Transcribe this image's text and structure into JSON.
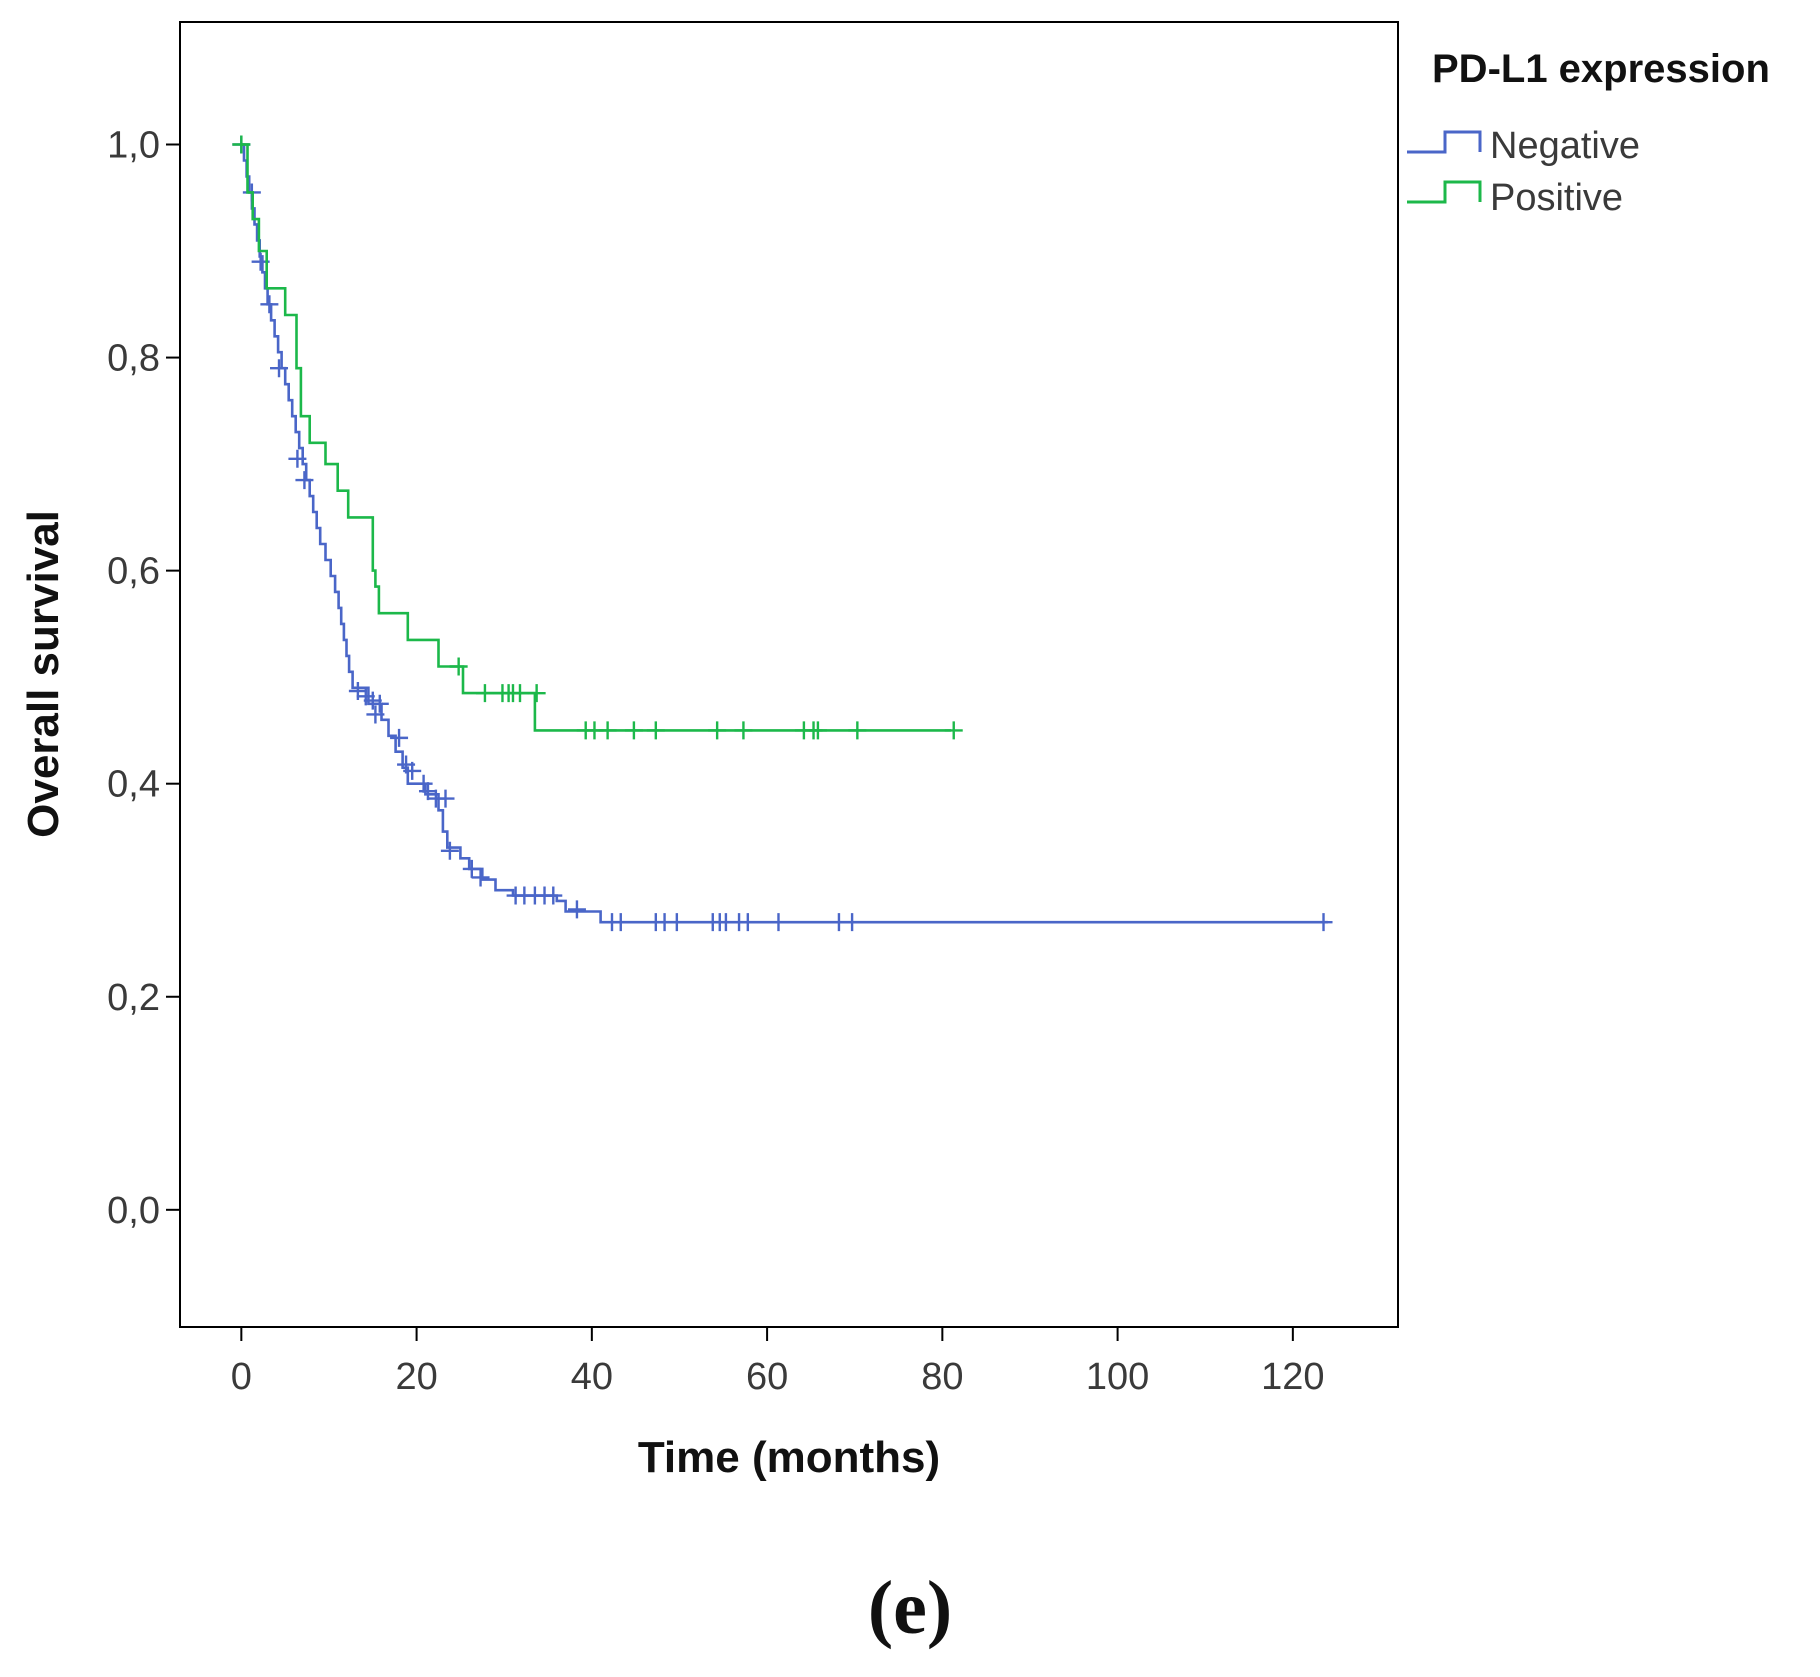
{
  "chart_data": {
    "type": "line",
    "subtype": "kaplan-meier step",
    "xlabel": "Time (months)",
    "ylabel": "Overall survival",
    "xlim": [
      -7,
      132
    ],
    "ylim": [
      -0.11,
      1.115
    ],
    "xticks": [
      0,
      20,
      40,
      60,
      80,
      100,
      120
    ],
    "xtick_labels": [
      "0",
      "20",
      "40",
      "60",
      "80",
      "100",
      "120"
    ],
    "yticks": [
      0.0,
      0.2,
      0.4,
      0.6,
      0.8,
      1.0
    ],
    "ytick_labels": [
      "0,0",
      "0,2",
      "0,4",
      "0,6",
      "0,8",
      "1,0"
    ],
    "grid": false,
    "legend": {
      "title": "PD-L1 expression",
      "placement": "right-outside-top"
    },
    "series": [
      {
        "name": "Negative",
        "color": "#4a66c8",
        "steps": [
          [
            0,
            1.0
          ],
          [
            0.3,
            0.985
          ],
          [
            0.6,
            0.97
          ],
          [
            0.9,
            0.955
          ],
          [
            1.2,
            0.94
          ],
          [
            1.5,
            0.925
          ],
          [
            1.8,
            0.91
          ],
          [
            2.1,
            0.895
          ],
          [
            2.4,
            0.88
          ],
          [
            2.7,
            0.865
          ],
          [
            3.0,
            0.85
          ],
          [
            3.4,
            0.835
          ],
          [
            3.8,
            0.82
          ],
          [
            4.2,
            0.805
          ],
          [
            4.6,
            0.79
          ],
          [
            5.0,
            0.775
          ],
          [
            5.4,
            0.76
          ],
          [
            5.8,
            0.745
          ],
          [
            6.2,
            0.73
          ],
          [
            6.6,
            0.715
          ],
          [
            7.0,
            0.7
          ],
          [
            7.4,
            0.685
          ],
          [
            7.8,
            0.67
          ],
          [
            8.2,
            0.655
          ],
          [
            8.6,
            0.64
          ],
          [
            9.0,
            0.625
          ],
          [
            9.6,
            0.61
          ],
          [
            10.2,
            0.595
          ],
          [
            10.7,
            0.58
          ],
          [
            11.1,
            0.565
          ],
          [
            11.4,
            0.55
          ],
          [
            11.7,
            0.535
          ],
          [
            12.0,
            0.52
          ],
          [
            12.3,
            0.505
          ],
          [
            12.7,
            0.49
          ],
          [
            14.5,
            0.475
          ],
          [
            16.0,
            0.46
          ],
          [
            16.8,
            0.445
          ],
          [
            17.6,
            0.43
          ],
          [
            18.4,
            0.415
          ],
          [
            19.0,
            0.4
          ],
          [
            21.0,
            0.39
          ],
          [
            22.5,
            0.375
          ],
          [
            23.0,
            0.355
          ],
          [
            23.5,
            0.34
          ],
          [
            25.0,
            0.33
          ],
          [
            26.0,
            0.32
          ],
          [
            27.5,
            0.31
          ],
          [
            29.0,
            0.3
          ],
          [
            31.0,
            0.295
          ],
          [
            36.0,
            0.29
          ],
          [
            37.0,
            0.28
          ],
          [
            41.0,
            0.27
          ]
        ],
        "end_time": 124,
        "censored": [
          [
            0,
            1.0
          ],
          [
            1.2,
            0.955
          ],
          [
            2.2,
            0.89
          ],
          [
            3.2,
            0.85
          ],
          [
            4.3,
            0.79
          ],
          [
            6.4,
            0.705
          ],
          [
            7.2,
            0.685
          ],
          [
            13.3,
            0.487
          ],
          [
            14.2,
            0.482
          ],
          [
            15.0,
            0.478
          ],
          [
            15.8,
            0.475
          ],
          [
            15.3,
            0.465
          ],
          [
            18.0,
            0.443
          ],
          [
            18.8,
            0.418
          ],
          [
            19.5,
            0.412
          ],
          [
            20.8,
            0.4
          ],
          [
            21.3,
            0.393
          ],
          [
            22.2,
            0.386
          ],
          [
            23.3,
            0.386
          ],
          [
            23.8,
            0.337
          ],
          [
            26.3,
            0.32
          ],
          [
            27.3,
            0.312
          ],
          [
            31.3,
            0.295
          ],
          [
            32.3,
            0.295
          ],
          [
            33.5,
            0.295
          ],
          [
            34.6,
            0.295
          ],
          [
            35.6,
            0.295
          ],
          [
            38.3,
            0.282
          ],
          [
            42.3,
            0.27
          ],
          [
            43.3,
            0.27
          ],
          [
            47.3,
            0.27
          ],
          [
            48.3,
            0.27
          ],
          [
            49.7,
            0.27
          ],
          [
            53.8,
            0.27
          ],
          [
            54.6,
            0.27
          ],
          [
            55.3,
            0.27
          ],
          [
            56.8,
            0.27
          ],
          [
            57.8,
            0.27
          ],
          [
            61.3,
            0.27
          ],
          [
            68.2,
            0.27
          ],
          [
            69.7,
            0.27
          ],
          [
            123.5,
            0.27
          ]
        ]
      },
      {
        "name": "Positive",
        "color": "#1cb84a",
        "steps": [
          [
            0,
            1.0
          ],
          [
            0.7,
            0.955
          ],
          [
            1.3,
            0.93
          ],
          [
            2.0,
            0.9
          ],
          [
            2.9,
            0.865
          ],
          [
            5.0,
            0.84
          ],
          [
            6.3,
            0.79
          ],
          [
            6.8,
            0.745
          ],
          [
            7.8,
            0.72
          ],
          [
            9.6,
            0.7
          ],
          [
            11.0,
            0.675
          ],
          [
            12.2,
            0.65
          ],
          [
            15.0,
            0.6
          ],
          [
            15.3,
            0.585
          ],
          [
            15.7,
            0.56
          ],
          [
            19.0,
            0.535
          ],
          [
            22.5,
            0.51
          ],
          [
            25.3,
            0.485
          ],
          [
            33.5,
            0.45
          ]
        ],
        "end_time": 81,
        "censored": [
          [
            0,
            1.0
          ],
          [
            24.8,
            0.51
          ],
          [
            27.8,
            0.485
          ],
          [
            29.8,
            0.485
          ],
          [
            30.5,
            0.485
          ],
          [
            31.0,
            0.485
          ],
          [
            31.8,
            0.485
          ],
          [
            33.7,
            0.485
          ],
          [
            39.3,
            0.45
          ],
          [
            40.3,
            0.45
          ],
          [
            41.8,
            0.45
          ],
          [
            44.8,
            0.45
          ],
          [
            47.3,
            0.45
          ],
          [
            54.3,
            0.45
          ],
          [
            57.3,
            0.45
          ],
          [
            64.2,
            0.45
          ],
          [
            65.3,
            0.45
          ],
          [
            65.8,
            0.45
          ],
          [
            70.3,
            0.45
          ],
          [
            81.3,
            0.45
          ]
        ]
      }
    ]
  },
  "figure": {
    "panel_label": "(e)"
  }
}
